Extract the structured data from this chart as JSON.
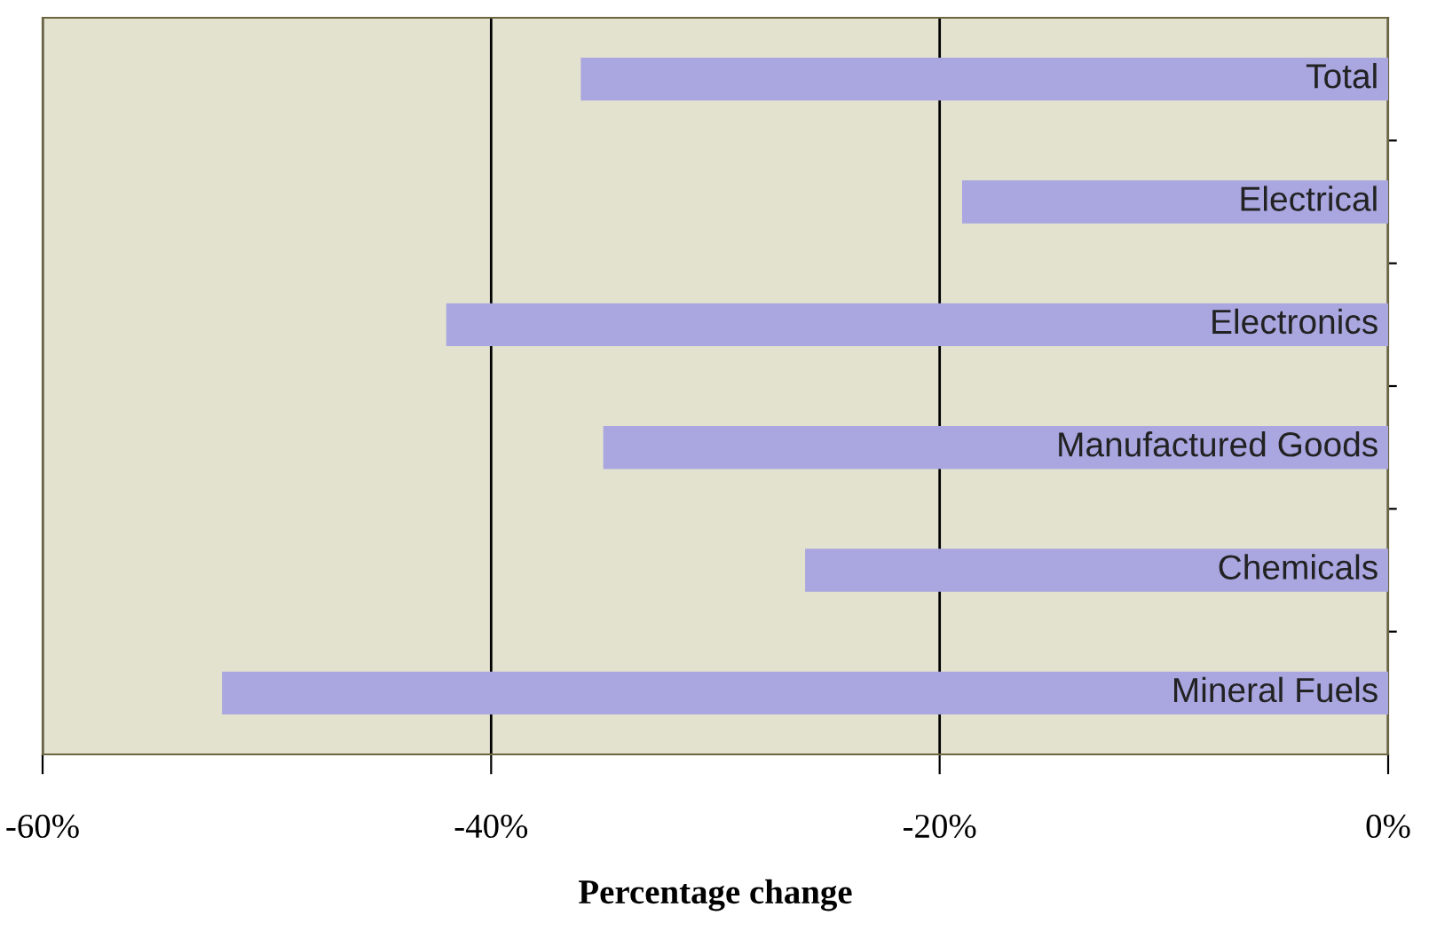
{
  "chart_data": {
    "type": "bar",
    "orientation": "horizontal",
    "xlabel": "Percentage change",
    "categories": [
      "Total",
      "Electrical",
      "Electronics",
      "Manufactured Goods",
      "Chemicals",
      "Mineral Fuels"
    ],
    "values": [
      -36,
      -19,
      -42,
      -35,
      -26,
      -52
    ],
    "color": "#a9a6e0",
    "xlim": [
      -60,
      0
    ],
    "xticks": [
      {
        "value": -60,
        "label": "-60%"
      },
      {
        "value": -40,
        "label": "-40%"
      },
      {
        "value": -20,
        "label": "-20%"
      },
      {
        "value": 0,
        "label": "0%"
      }
    ],
    "grid": "x"
  }
}
